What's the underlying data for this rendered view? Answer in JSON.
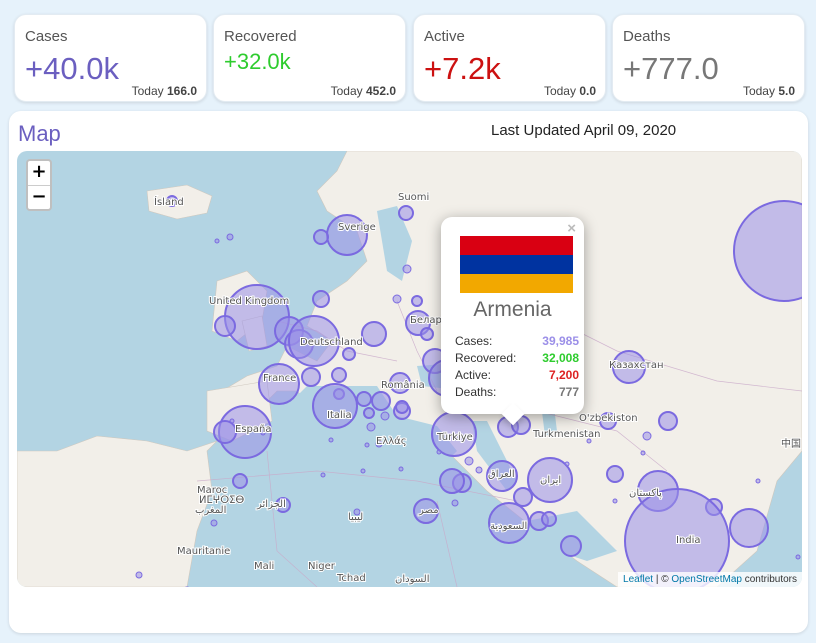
{
  "cards": {
    "cases": {
      "label": "Cases",
      "value": "+40.0k",
      "today_label": "Today",
      "today_value": "166.0",
      "color": "#6b5fc0"
    },
    "recovered": {
      "label": "Recovered",
      "value": "+32.0k",
      "today_label": "Today",
      "today_value": "452.0",
      "color": "#2ecc2e"
    },
    "active": {
      "label": "Active",
      "value": "+7.2k",
      "today_label": "Today",
      "today_value": "0.0",
      "color": "#cc1111"
    },
    "deaths": {
      "label": "Deaths",
      "value": "+777.0",
      "today_label": "Today",
      "today_value": "5.0",
      "color": "#777777"
    }
  },
  "map": {
    "title": "Map",
    "updated": "Last Updated April 09, 2020",
    "zoom_in": "+",
    "zoom_out": "−",
    "attribution": {
      "leaflet": "Leaflet",
      "sep": " | © ",
      "osm": "OpenStreetMap",
      "suffix": " contributors"
    },
    "labels": [
      "Ísland",
      "Suomi",
      "Sverige",
      "United Kingdom",
      "Deutschland",
      "France",
      "España",
      "Italia",
      "Беларусь",
      "România",
      "Ελλάς",
      "Türkiye",
      "Казахстан",
      "O'zbekiston",
      "Turkmenistan",
      "Maroc",
      "ⵍⵎⵖⵔⵉⴱ",
      "المغرب",
      "الجزائر",
      "ليبيا",
      "مصر",
      "العراق",
      "ایران",
      "پاکستان",
      "السعودية",
      "India",
      "Mauritanie",
      "Mali",
      "Niger",
      "Tchad",
      "السودان",
      "中国"
    ],
    "colors": {
      "bubble_fill": "#9b8fe8",
      "bubble_stroke": "#7b6ae0",
      "water": "#b3d4e3",
      "land": "#f2efe9"
    }
  },
  "popup": {
    "close": "×",
    "country": "Armenia",
    "flag_colors": [
      "#d90012",
      "#0033a0",
      "#f2a800"
    ],
    "rows": [
      {
        "label": "Cases:",
        "value": "39,985",
        "color": "#9b8fe8"
      },
      {
        "label": "Recovered:",
        "value": "32,008",
        "color": "#2ecc2e"
      },
      {
        "label": "Active:",
        "value": "7,200",
        "color": "#dd2222"
      },
      {
        "label": "Deaths:",
        "value": "777",
        "color": "#777777"
      }
    ]
  }
}
